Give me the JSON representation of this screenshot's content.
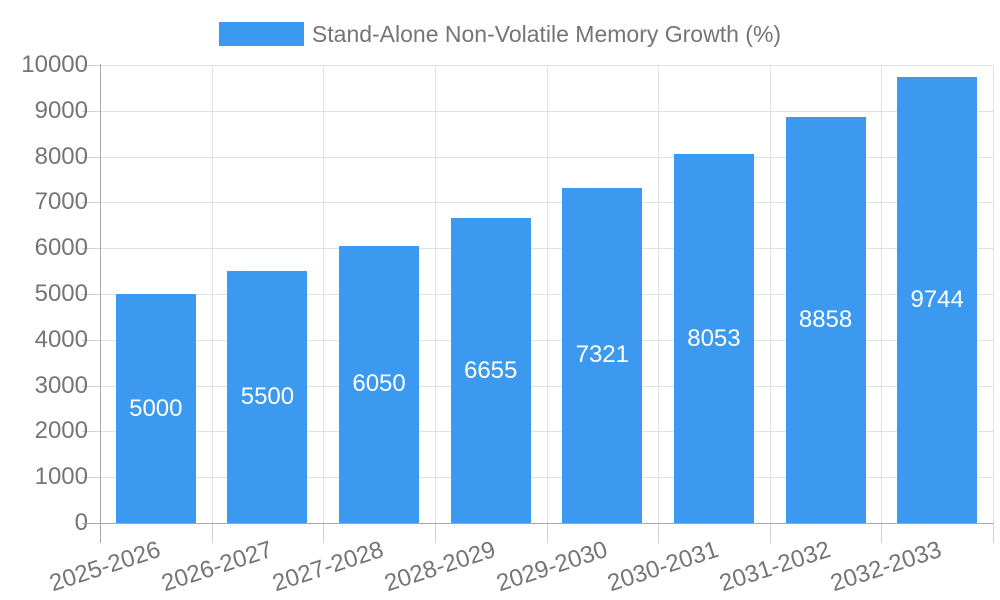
{
  "chart_data": {
    "type": "bar",
    "legend": [
      "Stand-Alone Non-Volatile Memory Growth (%)"
    ],
    "legend_position": "top-center",
    "categories": [
      "2025-2026",
      "2026-2027",
      "2027-2028",
      "2028-2029",
      "2029-2030",
      "2030-2031",
      "2031-2032",
      "2032-2033"
    ],
    "values": [
      5000,
      5500,
      6050,
      6655,
      7321,
      8053,
      8858,
      9744
    ],
    "bar_value_labels": [
      "5000",
      "5500",
      "6050",
      "6655",
      "7321",
      "8053",
      "8858",
      "9744"
    ],
    "xlabel": "",
    "ylabel": "",
    "ylim": [
      0,
      10000
    ],
    "yticks": [
      0,
      1000,
      2000,
      3000,
      4000,
      5000,
      6000,
      7000,
      8000,
      9000,
      10000
    ],
    "grid": true,
    "x_tick_label_rotation_deg": -18,
    "colors": {
      "bar": "#3b99f0",
      "bar_label": "#ffffff",
      "axis_text": "#757575",
      "axis_line": "#a8a8a8",
      "gridline": "#e2e2e2",
      "tick": "#cfcfcf",
      "background": "#ffffff"
    }
  }
}
